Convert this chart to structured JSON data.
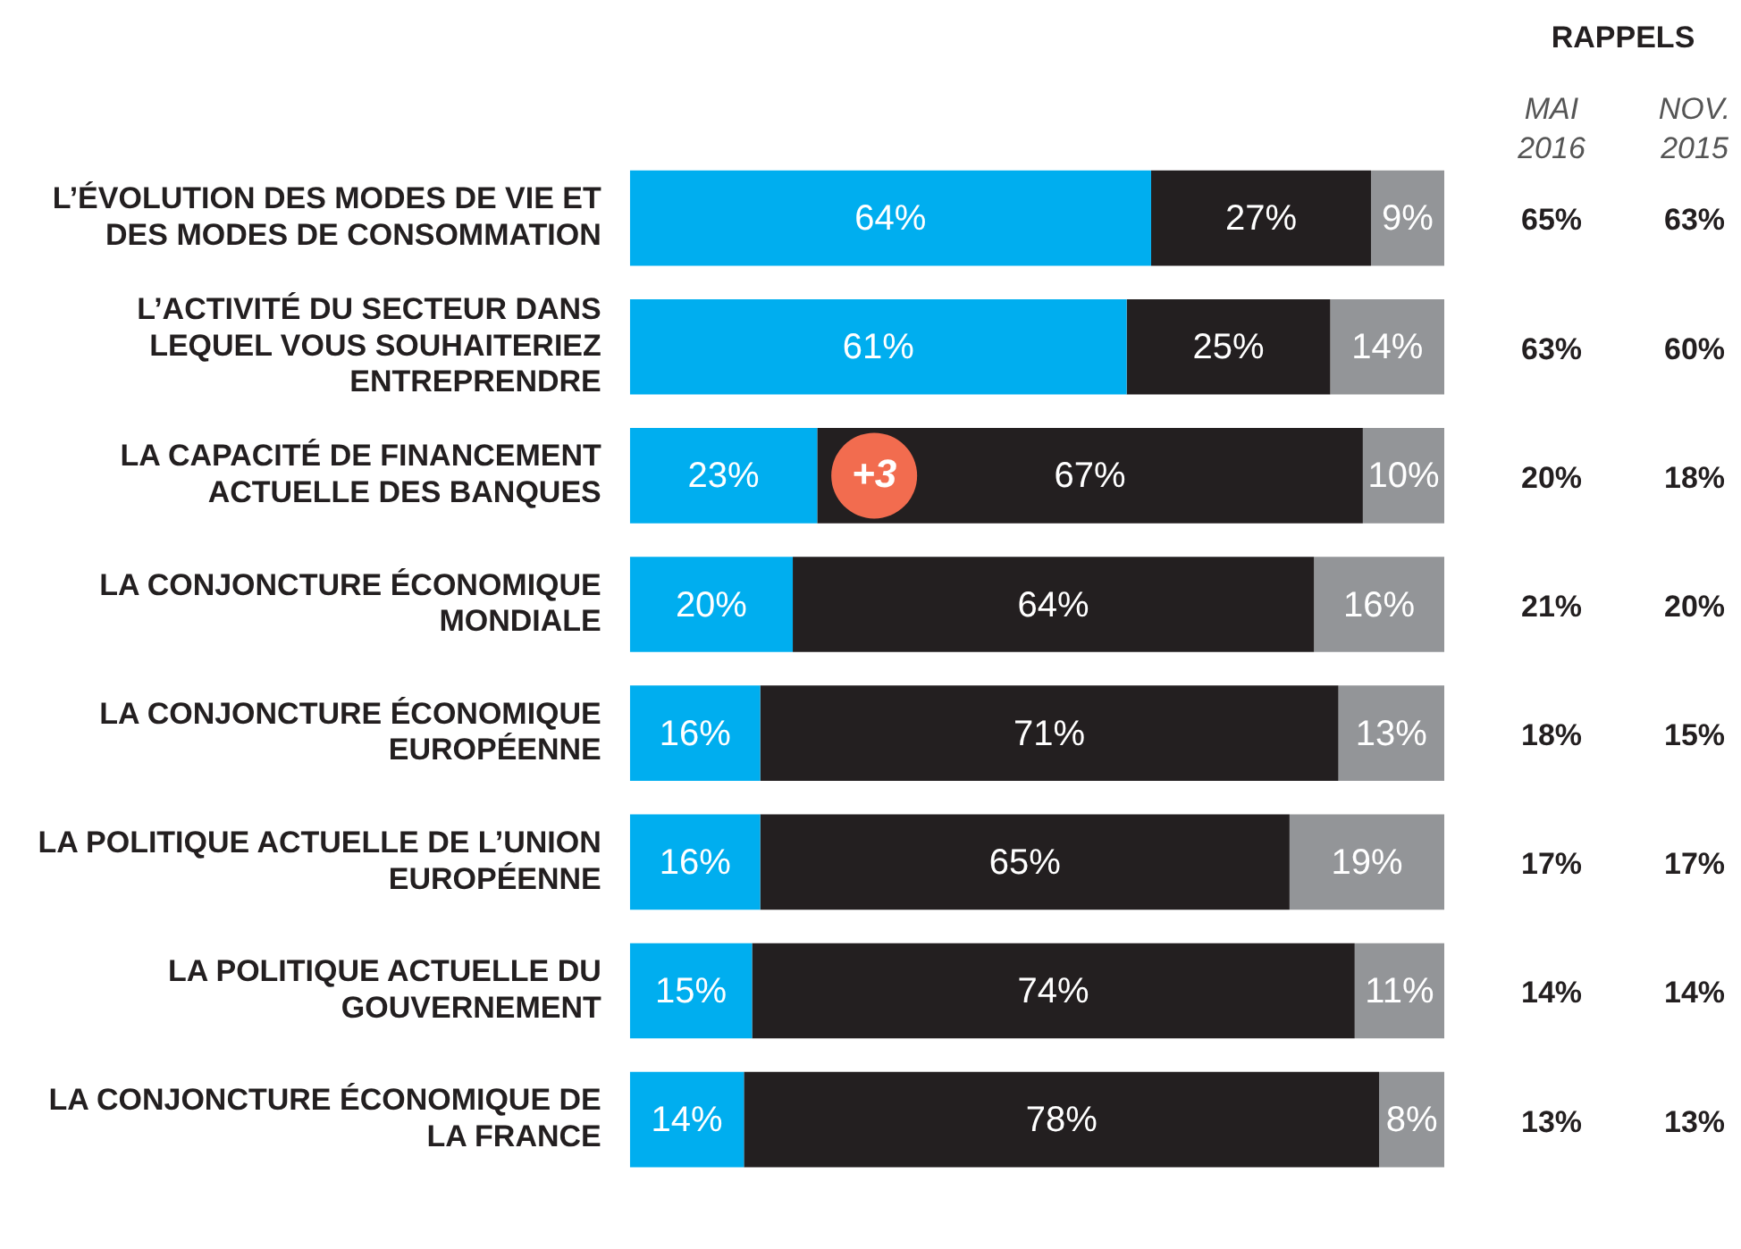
{
  "chart_data": {
    "type": "bar",
    "orientation": "horizontal",
    "stacked": true,
    "tick_labels": "y",
    "xlim": [
      0,
      100
    ],
    "grid": false,
    "legend": false,
    "categories": [
      "L’ÉVOLUTION DES MODES DE VIE ET DES MODES DE CONSOMMATION",
      "L’ACTIVITÉ DU SECTEUR DANS LEQUEL VOUS SOUHAITERIEZ ENTREPRENDRE",
      "LA CAPACITÉ DE FINANCEMENT ACTUELLE DES BANQUES",
      "LA CONJONCTURE ÉCONOMIQUE MONDIALE",
      "LA CONJONCTURE ÉCONOMIQUE EUROPÉENNE",
      "LA POLITIQUE ACTUELLE DE L’UNION EUROPÉENNE",
      "LA POLITIQUE ACTUELLE DU GOUVERNEMENT",
      "LA CONJONCTURE ÉCONOMIQUE DE LA FRANCE"
    ],
    "series": [
      {
        "color": "#00aeef",
        "values": [
          64,
          61,
          23,
          20,
          16,
          16,
          15,
          14
        ],
        "value_labels": [
          "64%",
          "61%",
          "23%",
          "20%",
          "16%",
          "16%",
          "15%",
          "14%"
        ]
      },
      {
        "color": "#231f20",
        "values": [
          27,
          25,
          67,
          64,
          71,
          65,
          74,
          78
        ],
        "value_labels": [
          "27%",
          "25%",
          "67%",
          "64%",
          "71%",
          "65%",
          "74%",
          "78%"
        ]
      },
      {
        "color": "#939598",
        "values": [
          9,
          14,
          10,
          16,
          13,
          19,
          11,
          8
        ],
        "value_labels": [
          "9%",
          "14%",
          "10%",
          "16%",
          "13%",
          "19%",
          "11%",
          "8%"
        ]
      }
    ],
    "annotations": [
      "RAPPELS",
      "MAI 2016",
      "NOV. 2015",
      "65%",
      "63%",
      "63%",
      "60%",
      "20%",
      "18%",
      "21%",
      "20%",
      "18%",
      "15%",
      "17%",
      "17%",
      "14%",
      "14%",
      "13%",
      "13%",
      {
        "text": "+3",
        "x": 30,
        "y": "LA CAPACITÉ DE FINANCEMENT ACTUELLE DES BANQUES"
      }
    ]
  }
}
